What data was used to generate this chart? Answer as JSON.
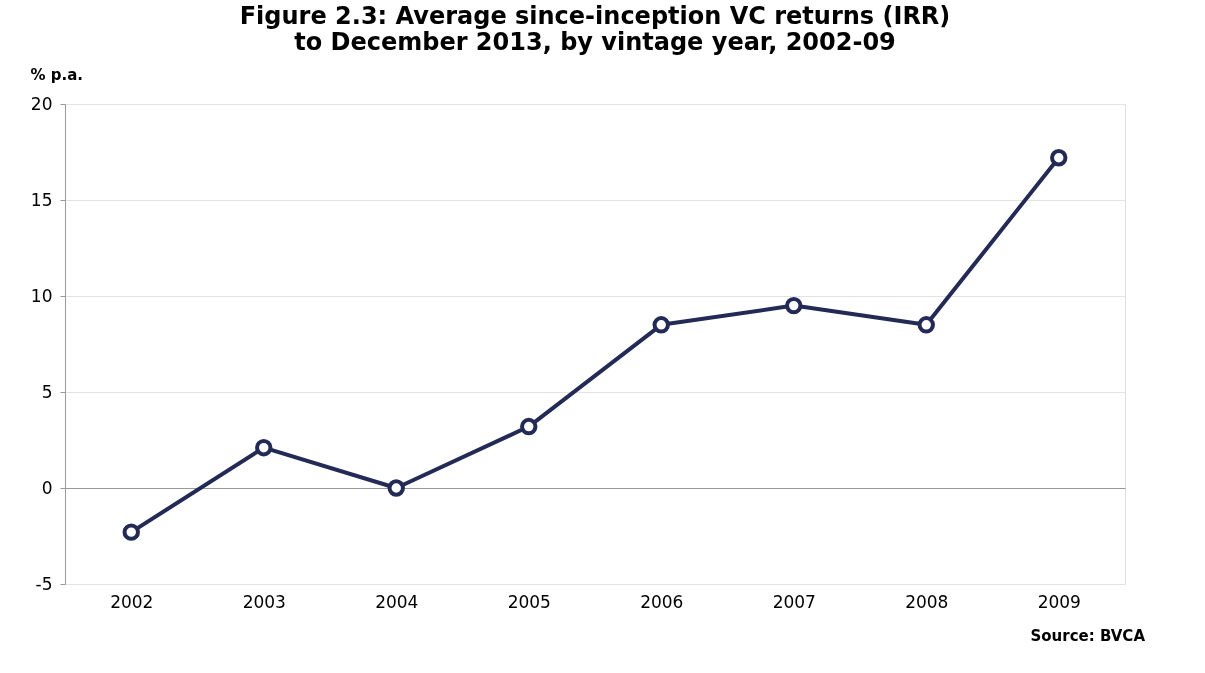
{
  "chart_data": {
    "type": "line",
    "title": [
      "Figure 2.3: Average since-inception VC returns (IRR)",
      "to December 2013, by vintage year, 2002-09"
    ],
    "ylabel": "% p.a.",
    "categories": [
      "2002",
      "2003",
      "2004",
      "2005",
      "2006",
      "2007",
      "2008",
      "2009"
    ],
    "series": [
      {
        "color": "#222a55",
        "values": [
          -2.3,
          2.1,
          0.0,
          3.2,
          8.5,
          9.5,
          8.5,
          17.2
        ]
      }
    ],
    "ylim": [
      -5,
      20
    ],
    "yticks": [
      -5,
      0,
      5,
      10,
      15,
      20
    ],
    "grid": "y",
    "marker": "circle",
    "line_style": "solid",
    "legend": false,
    "annotations": [
      "Source: BVCA"
    ]
  }
}
